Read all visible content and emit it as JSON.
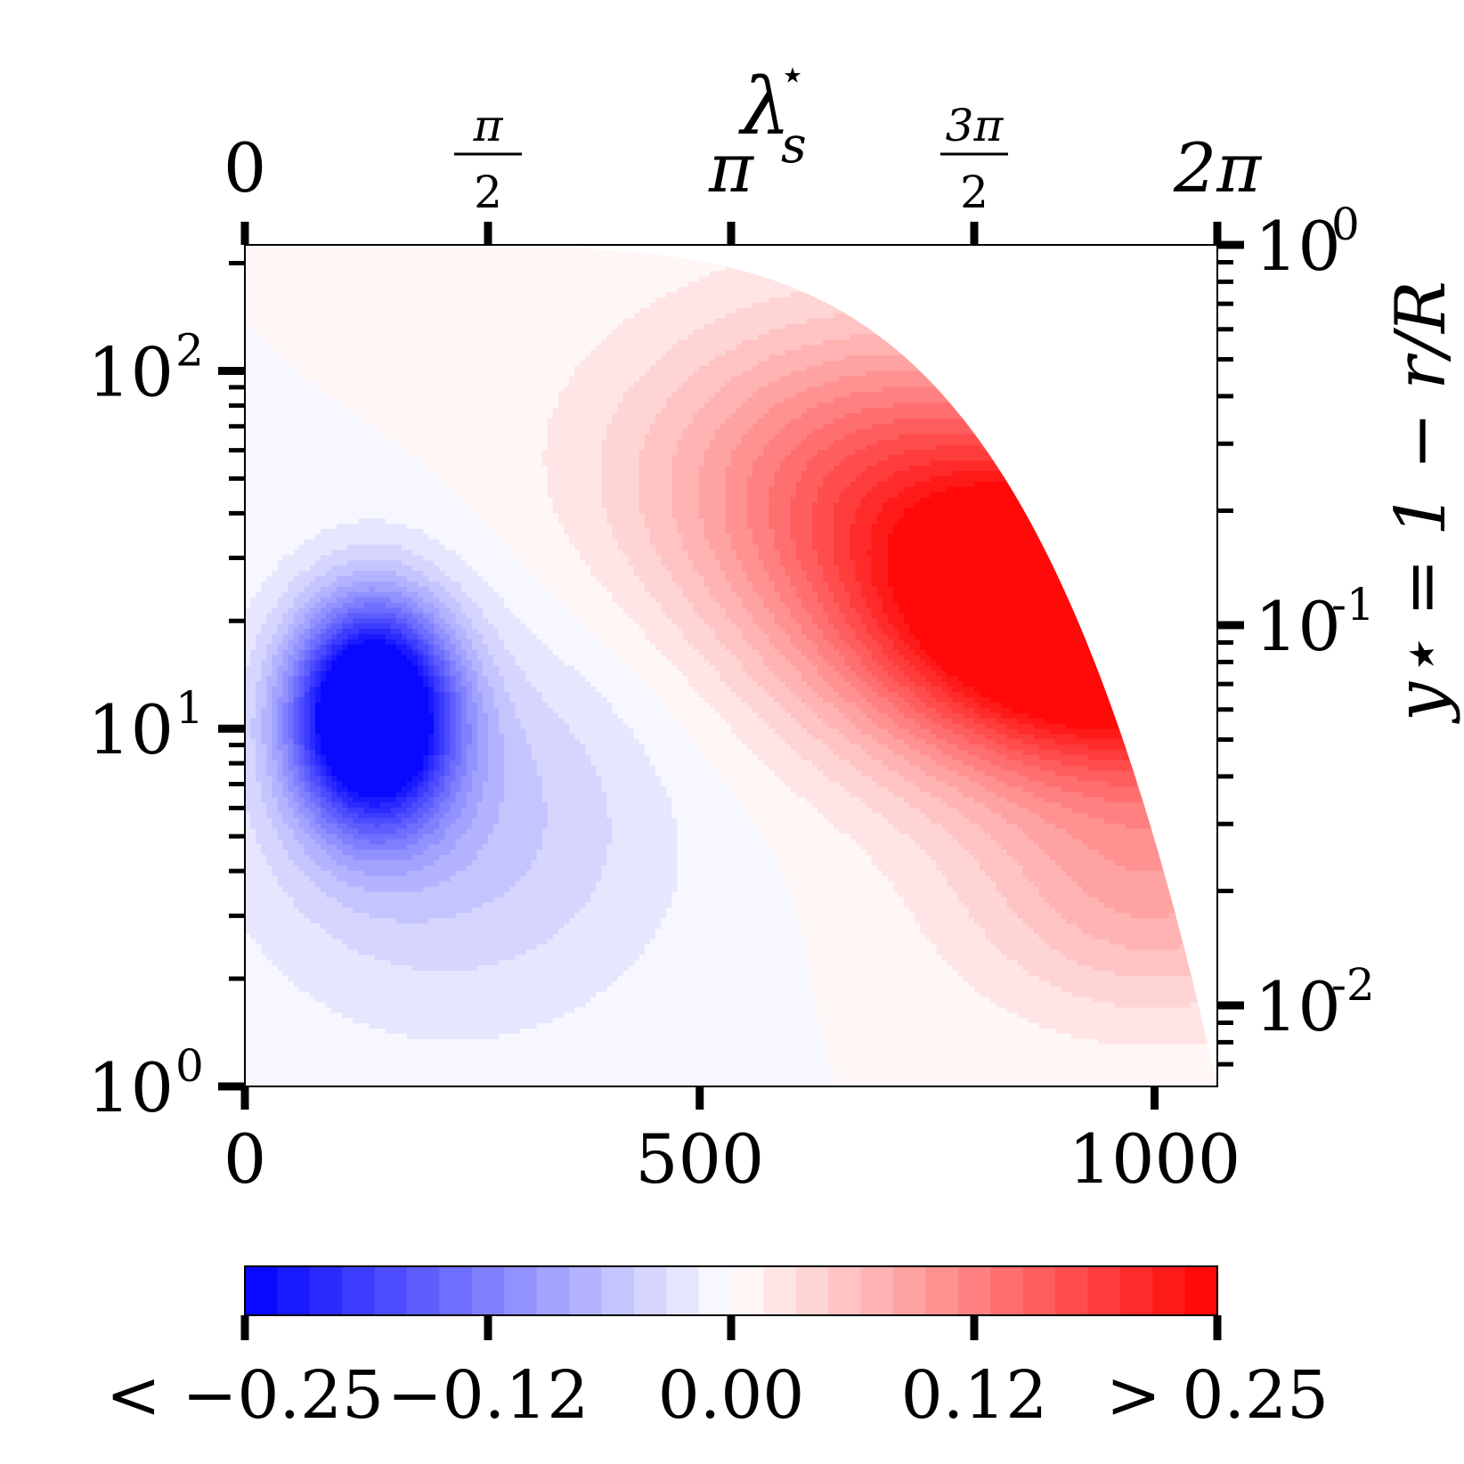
{
  "chart_data": {
    "type": "heatmap",
    "subtype": "filled-contour",
    "bottom_axis": {
      "ticks": [
        0,
        500,
        1000
      ],
      "labels": [
        "0",
        "500",
        "1000"
      ],
      "range": [
        0,
        1069
      ]
    },
    "top_axis": {
      "label": "λ",
      "label_sup": "⋆",
      "label_sub": "s",
      "ticks": [
        0,
        1.5708,
        3.1416,
        4.7124,
        6.2832
      ],
      "labels": [
        "0",
        "π/2",
        "π",
        "3π/2",
        "2π"
      ]
    },
    "left_axis": {
      "scale": "log",
      "range": [
        1,
        225
      ],
      "labels": [
        {
          "base": "10",
          "exp": "0",
          "value": 1
        },
        {
          "base": "10",
          "exp": "1",
          "value": 10
        },
        {
          "base": "10",
          "exp": "2",
          "value": 100
        }
      ]
    },
    "right_axis": {
      "scale": "log",
      "label_text": "y⋆ = 1 − r/R",
      "labels": [
        {
          "base": "10",
          "exp": "0",
          "value": 1
        },
        {
          "base": "10",
          "exp": "-1",
          "value": 0.1
        },
        {
          "base": "10",
          "exp": "-2",
          "value": 0.01
        }
      ]
    },
    "colorbar": {
      "range": [
        -0.25,
        0.25
      ],
      "levels": 30,
      "ticks": [
        -0.25,
        -0.125,
        0,
        0.125,
        0.25
      ],
      "labels": [
        "< −0.25",
        "−0.12",
        "0.00",
        "0.12",
        "> 0.25"
      ],
      "colormap": "bwr",
      "color_low": "#0000ff",
      "color_mid": "#ffffff",
      "color_high": "#ff0000"
    },
    "features": [
      {
        "sign": "negative",
        "center_x": 140,
        "center_y": 11,
        "peak": -0.25
      },
      {
        "sign": "positive",
        "center_x": 900,
        "center_y": 20,
        "peak": 0.25
      }
    ]
  }
}
